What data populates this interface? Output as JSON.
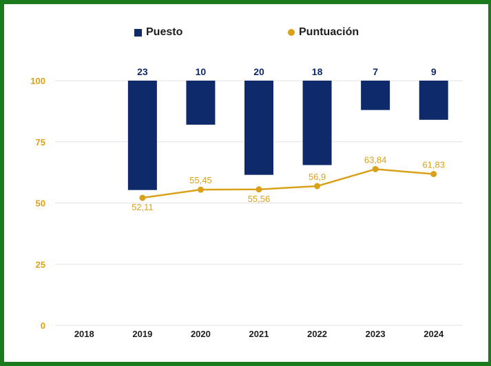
{
  "chart_data": {
    "type": "bar+line",
    "categories": [
      "2018",
      "2019",
      "2020",
      "2021",
      "2022",
      "2023",
      "2024"
    ],
    "ylim": [
      0,
      100
    ],
    "yticks": [
      0,
      25,
      50,
      75,
      100
    ],
    "grid": true,
    "legend_position": "top",
    "series": [
      {
        "name": "Puesto",
        "kind": "bar",
        "color": "#0e2a6b",
        "labels": [
          null,
          "23",
          "10",
          "20",
          "18",
          "7",
          "9"
        ],
        "bar_bottom_on_axis": [
          null,
          55.3,
          82.0,
          61.5,
          65.5,
          88.0,
          84.0
        ]
      },
      {
        "name": "Puntuación",
        "kind": "line",
        "color": "#d9a11a",
        "values": [
          null,
          52.11,
          55.45,
          55.56,
          56.9,
          63.84,
          61.83
        ],
        "labels": [
          null,
          "52,11",
          "55,45",
          "55,56",
          "56,9",
          "63,84",
          "61,83"
        ],
        "label_position": [
          null,
          "below",
          "above",
          "below",
          "above",
          "above",
          "above"
        ]
      }
    ]
  },
  "colors": {
    "frame": "#1b7a1b",
    "axis_text": "#d9a11a",
    "category_text": "#1d1d1d",
    "grid": "#e3e3e3"
  }
}
